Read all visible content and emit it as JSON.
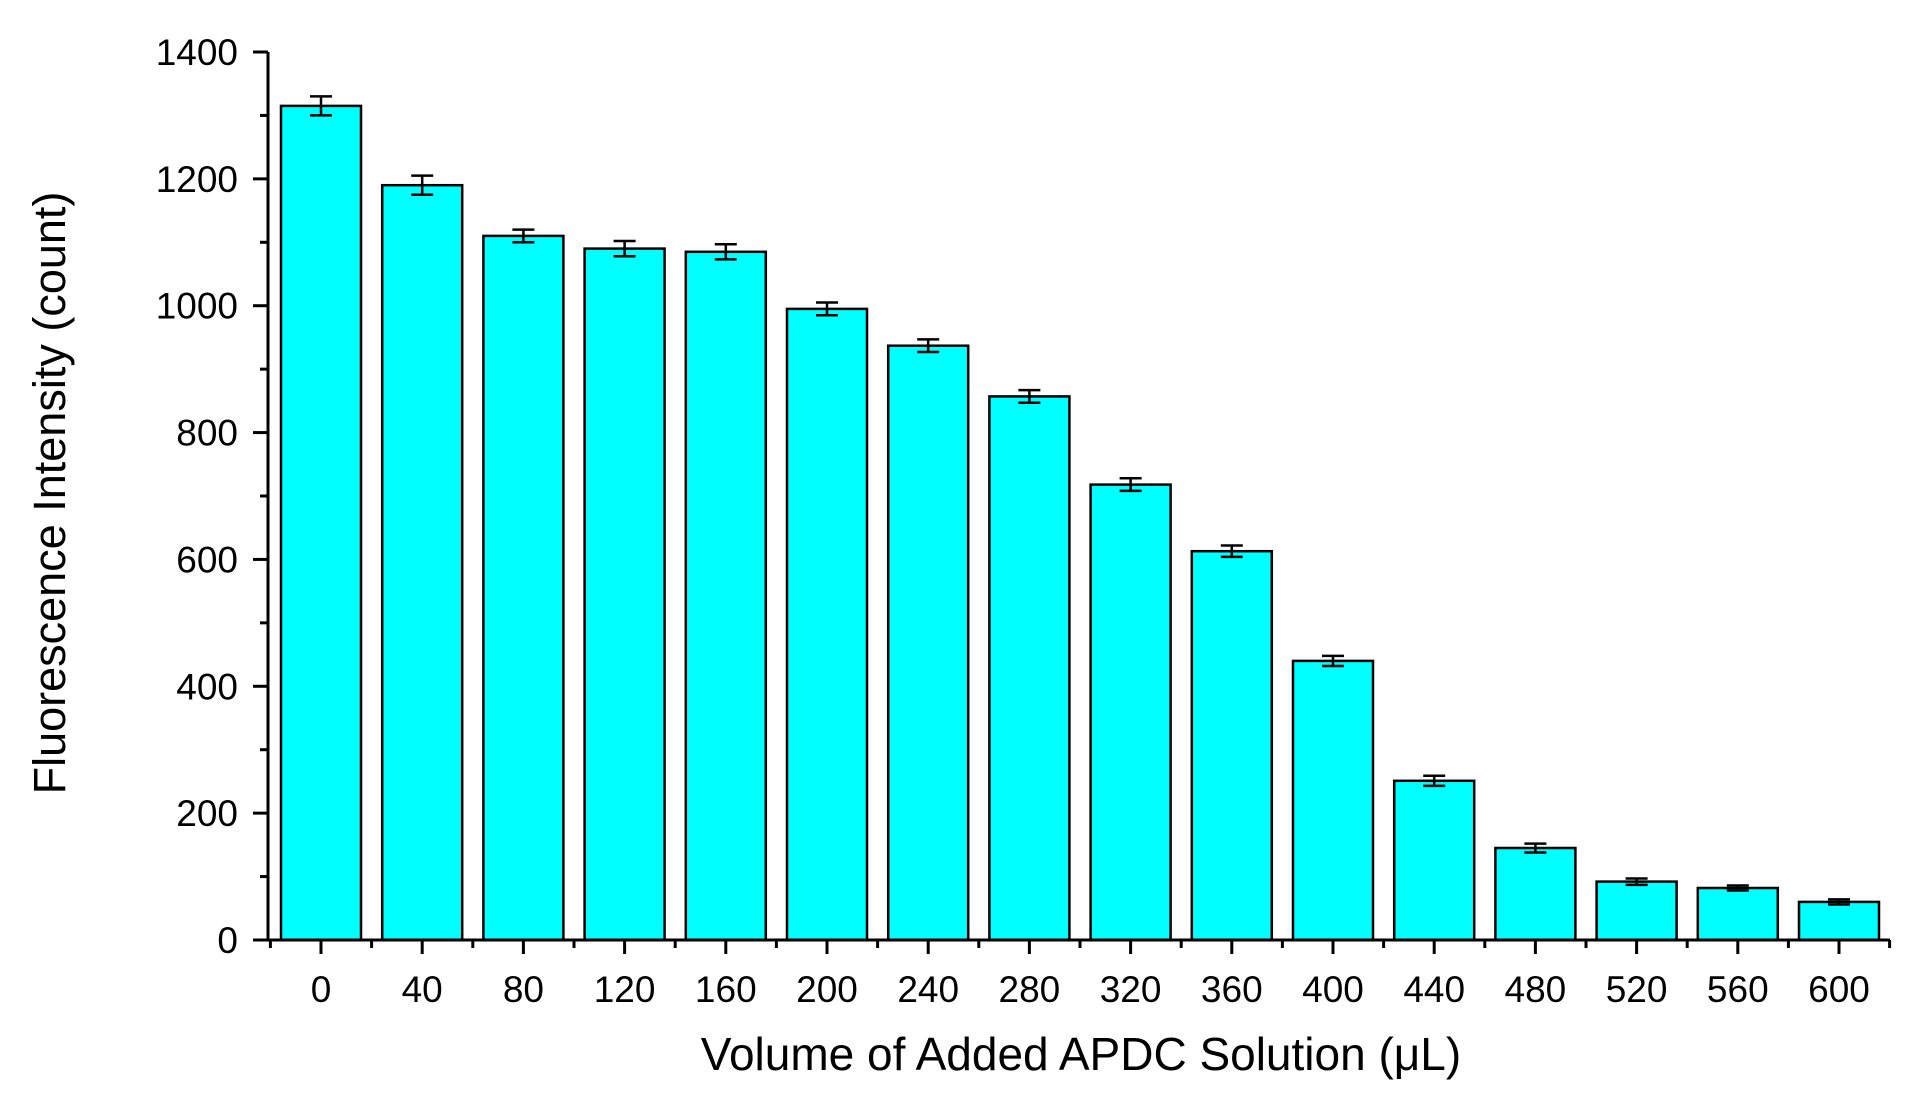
{
  "chart_data": {
    "type": "bar",
    "xlabel": "Volume of Added APDC Solution (μL)",
    "ylabel": "Fluorescence Intensity (count)",
    "categories": [
      "0",
      "40",
      "80",
      "120",
      "160",
      "200",
      "240",
      "280",
      "320",
      "360",
      "400",
      "440",
      "480",
      "520",
      "560",
      "600"
    ],
    "values": [
      1315,
      1190,
      1110,
      1090,
      1085,
      995,
      937,
      857,
      718,
      613,
      440,
      251,
      145,
      92,
      82,
      60
    ],
    "errors": [
      15,
      15,
      10,
      12,
      12,
      10,
      10,
      10,
      10,
      9,
      8,
      8,
      7,
      5,
      4,
      4
    ],
    "ylim": [
      0,
      1400
    ],
    "yticks": [
      "0",
      "200",
      "400",
      "600",
      "800",
      "1000",
      "1200",
      "1400"
    ],
    "ytick_values": [
      0,
      200,
      400,
      600,
      800,
      1000,
      1200,
      1400
    ],
    "bar_color": "#00ffff",
    "grid": false,
    "legend": "none"
  }
}
